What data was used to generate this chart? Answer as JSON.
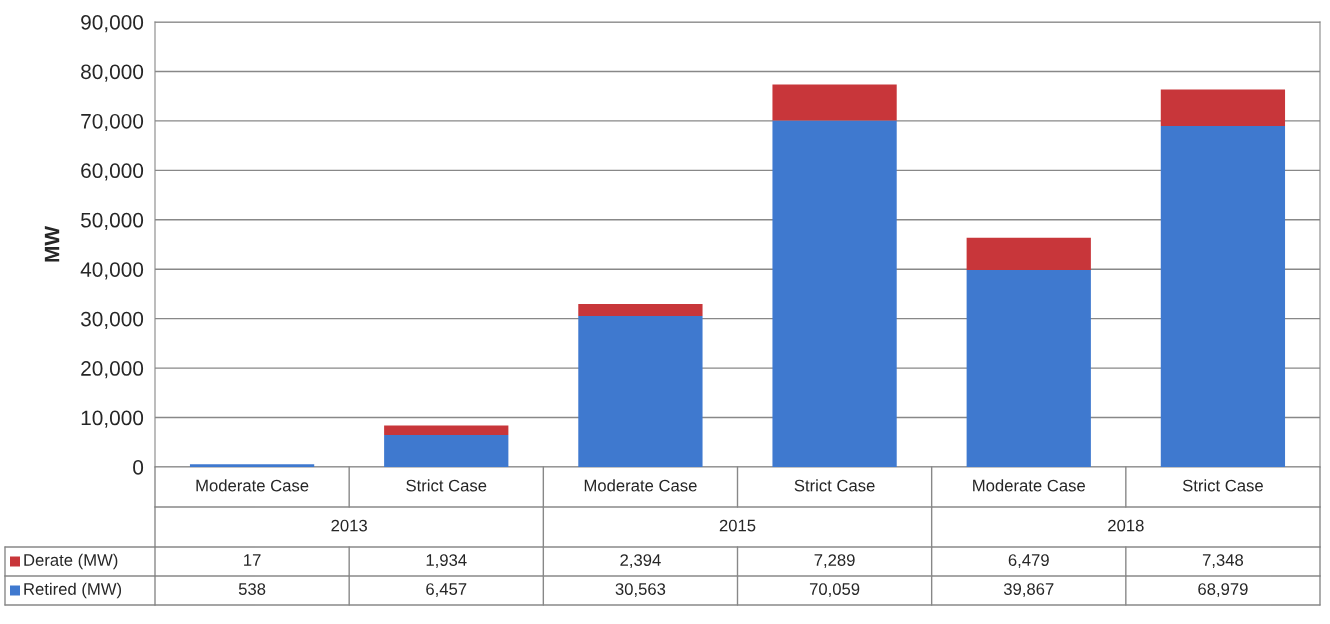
{
  "chart_data": {
    "type": "bar",
    "stacked": true,
    "ylabel": "MW",
    "categories": [
      "Moderate Case",
      "Strict Case",
      "Moderate Case",
      "Strict Case",
      "Moderate Case",
      "Strict Case"
    ],
    "annotations": [
      "2013",
      "2015",
      "2018"
    ],
    "series": [
      {
        "name": "Retired (MW)",
        "color": "#3f79cf",
        "values": [
          538,
          6457,
          30563,
          70059,
          39867,
          68979
        ],
        "value_labels": [
          "538",
          "6,457",
          "30,563",
          "70,059",
          "39,867",
          "68,979"
        ]
      },
      {
        "name": "Derate (MW)",
        "color": "#c8363a",
        "values": [
          17,
          1934,
          2394,
          7289,
          6479,
          7348
        ],
        "value_labels": [
          "17",
          "1,934",
          "2,394",
          "7,289",
          "6,479",
          "7,348"
        ]
      }
    ],
    "ylim": [
      0,
      90000
    ],
    "yticks": [
      0,
      {
        "value": 10000,
        "label": "10,000"
      },
      {
        "value": 20000,
        "label": "20,000"
      },
      {
        "value": 30000,
        "label": "30,000"
      },
      {
        "value": 40000,
        "label": "40,000"
      },
      {
        "value": 50000,
        "label": "50,000"
      },
      {
        "value": 60000,
        "label": "60,000"
      },
      {
        "value": 70000,
        "label": "70,000"
      },
      {
        "value": 80000,
        "label": "80,000"
      },
      {
        "value": 90000,
        "label": "90,000"
      }
    ],
    "grid": "y",
    "legend": "bottom left"
  }
}
